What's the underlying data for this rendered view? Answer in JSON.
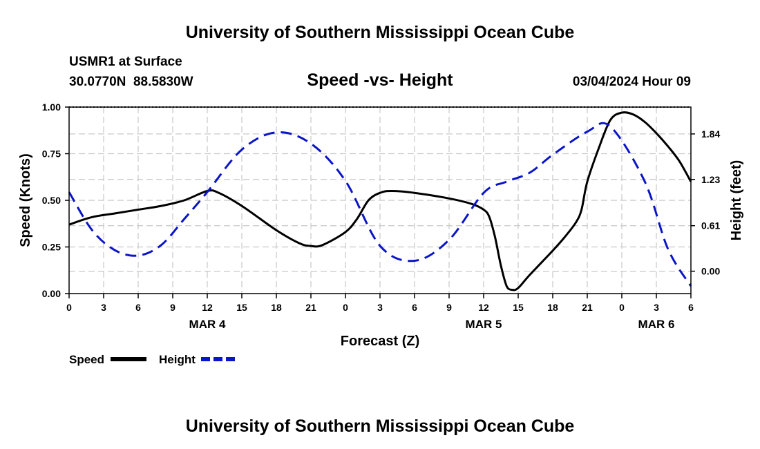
{
  "header": {
    "title": "University of Southern Mississippi Ocean Cube",
    "station": "USMR1 at Surface",
    "coords": "30.0770N  88.5830W",
    "date": "03/04/2024 Hour 09",
    "footer_title": "University of Southern Mississippi Ocean Cube"
  },
  "colors": {
    "speed": "#000000",
    "height": "#0a14c8",
    "grid": "#c8c8c8"
  },
  "chart_data": {
    "type": "line",
    "title": "Speed -vs- Height",
    "xlabel": "Forecast (Z)",
    "ylabel": "Speed (Knots)",
    "y2label": "Height (feet)",
    "xlim": [
      0,
      54
    ],
    "ylim": [
      0,
      1.0
    ],
    "y2lim": [
      -0.3,
      2.2
    ],
    "x_ticks": [
      0,
      3,
      6,
      9,
      12,
      15,
      18,
      21,
      24,
      27,
      30,
      33,
      36,
      39,
      42,
      45,
      48,
      51,
      54
    ],
    "x_tick_labels": [
      "0",
      "3",
      "6",
      "9",
      "12",
      "15",
      "18",
      "21",
      "0",
      "3",
      "6",
      "9",
      "12",
      "15",
      "18",
      "21",
      "0",
      "3",
      "6"
    ],
    "date_labels": [
      {
        "x": 12,
        "label": "MAR 4"
      },
      {
        "x": 36,
        "label": "MAR 5"
      },
      {
        "x": 51,
        "label": "MAR 6"
      }
    ],
    "y_ticks": [
      0,
      0.25,
      0.5,
      0.75,
      1.0
    ],
    "y_tick_labels": [
      "0.00",
      "0.25",
      "0.50",
      "0.75",
      "1.00"
    ],
    "y2_ticks": [
      0.0,
      0.61,
      1.23,
      1.84
    ],
    "y2_tick_labels": [
      "0.00",
      "0.61",
      "1.23",
      "1.84"
    ],
    "legend": [
      "Speed",
      "Height"
    ],
    "series": [
      {
        "name": "Speed",
        "axis": "left",
        "style": "solid",
        "x": [
          0,
          2,
          4,
          6,
          8,
          10,
          12,
          13,
          15,
          18,
          20,
          21,
          22,
          24,
          25,
          26,
          27,
          28,
          30,
          33,
          35,
          36,
          36.5,
          37,
          37.5,
          38,
          38.5,
          39,
          40,
          42,
          43,
          44,
          44.5,
          45,
          46,
          47,
          48,
          49,
          50,
          51,
          52,
          53,
          54
        ],
        "y": [
          0.37,
          0.41,
          0.43,
          0.45,
          0.47,
          0.5,
          0.55,
          0.54,
          0.47,
          0.34,
          0.27,
          0.255,
          0.26,
          0.33,
          0.4,
          0.5,
          0.54,
          0.55,
          0.54,
          0.51,
          0.48,
          0.45,
          0.41,
          0.3,
          0.15,
          0.04,
          0.02,
          0.03,
          0.1,
          0.23,
          0.3,
          0.38,
          0.45,
          0.6,
          0.78,
          0.93,
          0.97,
          0.96,
          0.92,
          0.86,
          0.79,
          0.71,
          0.6
        ]
      },
      {
        "name": "Height",
        "axis": "right",
        "style": "dashed",
        "x": [
          0,
          2,
          4,
          6,
          8,
          10,
          12,
          15,
          18,
          21,
          24,
          27,
          30,
          33,
          36,
          38,
          40,
          42,
          45,
          47,
          50,
          52,
          54
        ],
        "y": [
          1.06,
          0.55,
          0.28,
          0.21,
          0.35,
          0.7,
          1.06,
          1.63,
          1.86,
          1.71,
          1.21,
          0.34,
          0.14,
          0.42,
          1.05,
          1.2,
          1.32,
          1.56,
          1.87,
          1.94,
          1.2,
          0.3,
          -0.2
        ]
      }
    ]
  }
}
